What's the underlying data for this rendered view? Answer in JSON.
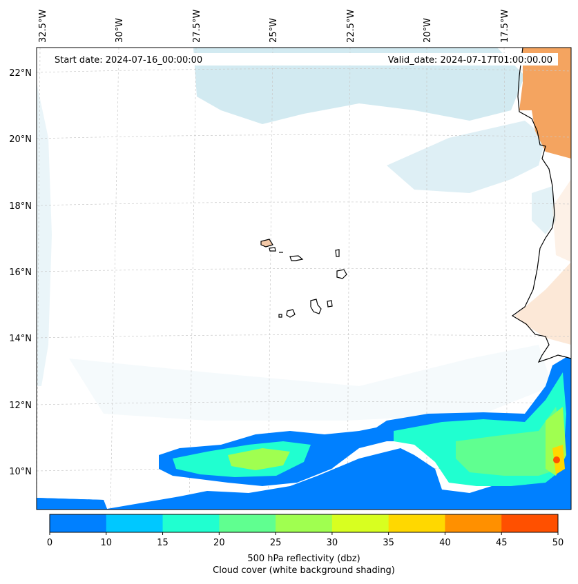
{
  "map": {
    "start_date": "Start date: 2024-07-16_00:00:00",
    "valid_date": "Valid_date: 2024-07-17T01:00:00.00",
    "lon_labels": [
      "32.5°W",
      "30°W",
      "27.5°W",
      "25°W",
      "22.5°W",
      "20°W",
      "17.5°W"
    ],
    "lat_labels": [
      "22°N",
      "20°N",
      "18°N",
      "16°N",
      "14°N",
      "12°N",
      "10°N"
    ],
    "colors": {
      "ocean": "#ffffff",
      "cloud": "#add8e6",
      "land_heat": "#f4a460",
      "coast": "#000000",
      "grid": "#c8c8c8"
    }
  },
  "colorbar": {
    "ticks": [
      "0",
      "10",
      "15",
      "20",
      "25",
      "30",
      "35",
      "40",
      "45",
      "50"
    ],
    "colors": [
      "#0080ff",
      "#00c8ff",
      "#20ffd0",
      "#60ff90",
      "#a0ff50",
      "#d8ff20",
      "#ffd800",
      "#ff9000",
      "#ff5000"
    ],
    "title": "500 hPa reflectivity (dbz)",
    "subtitle": "Cloud cover (white background shading)"
  }
}
